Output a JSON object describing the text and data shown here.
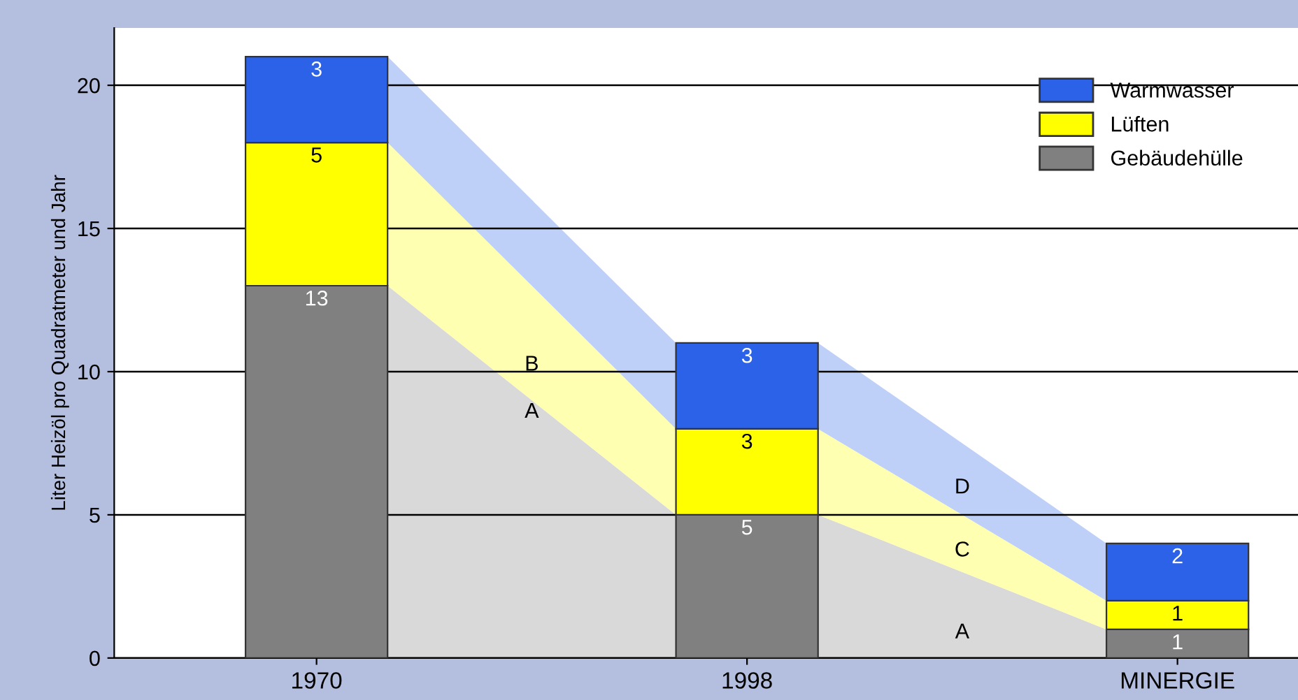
{
  "chart_data": {
    "type": "bar",
    "stacked": true,
    "ylabel": "Liter Heizöl pro Quadratmeter und Jahr",
    "categories": [
      "1970",
      "1998",
      "MINERGIE"
    ],
    "series": [
      {
        "name": "Gebäudehülle",
        "color": "#808080",
        "values": [
          13,
          5,
          1
        ]
      },
      {
        "name": "Lüften",
        "color": "#ffff00",
        "values": [
          5,
          3,
          1
        ]
      },
      {
        "name": "Warmwasser",
        "color": "#2b62e8",
        "values": [
          3,
          3,
          2
        ]
      }
    ],
    "ylim": [
      0,
      22
    ],
    "yticks": [
      0,
      5,
      10,
      15,
      20
    ],
    "grid": "y",
    "legend": "top right",
    "data_labels": true,
    "annotations": [
      "A",
      "B",
      "A",
      "C",
      "D"
    ]
  }
}
